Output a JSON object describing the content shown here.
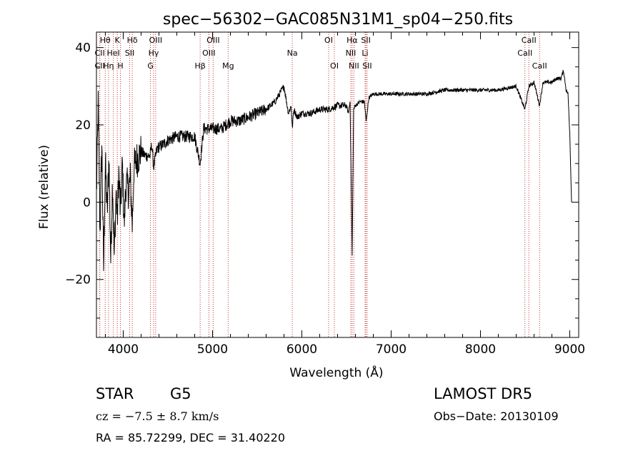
{
  "chart_data": {
    "type": "line",
    "title": "spec−56302−GAC085N31M1_sp04−250.fits",
    "xlabel": "Wavelength (Å)",
    "ylabel": "Flux (relative)",
    "xlim": [
      3700,
      9100
    ],
    "ylim": [
      -35,
      44
    ],
    "x_ticks": [
      4000,
      5000,
      6000,
      7000,
      8000,
      9000
    ],
    "x_tick_labels": [
      "4000",
      "5000",
      "6000",
      "7000",
      "8000",
      "9000"
    ],
    "y_ticks": [
      -20,
      0,
      20,
      40
    ],
    "y_tick_labels": [
      "−20",
      "0",
      "20",
      "40"
    ],
    "grid": false,
    "line_color": "#000000",
    "marker_color": "#c83232",
    "series": [
      {
        "x": [
          3700,
          3720,
          3740,
          3760,
          3780,
          3800,
          3820,
          3840,
          3860,
          3880,
          3900,
          3920,
          3933,
          3950,
          3968,
          3990,
          4010,
          4030,
          4060,
          4080,
          4101,
          4120,
          4150,
          4200,
          4250,
          4300,
          4320,
          4340,
          4380,
          4450,
          4500,
          4600,
          4700,
          4800,
          4861,
          4900,
          5000,
          5100,
          5200,
          5300,
          5400,
          5500,
          5600,
          5700,
          5800,
          5850,
          5880,
          5893,
          5910,
          5950,
          6000,
          6100,
          6200,
          6300,
          6400,
          6500,
          6520,
          6540,
          6563,
          6580,
          6600,
          6650,
          6700,
          6720,
          6750,
          6800,
          6900,
          7000,
          7200,
          7400,
          7600,
          7800,
          8000,
          8200,
          8400,
          8498,
          8542,
          8600,
          8662,
          8700,
          8800,
          8850,
          8900,
          8930,
          8960,
          8980,
          9000,
          9020
        ],
        "y": [
          2,
          25,
          -8,
          15,
          -17,
          10,
          -3,
          12,
          -15,
          6,
          -14,
          3,
          -5,
          8,
          -3,
          10,
          -6,
          5,
          3,
          6,
          -6,
          9,
          11,
          13,
          12,
          12,
          15,
          9,
          14,
          15,
          16,
          17,
          17,
          17,
          10,
          19,
          19,
          19,
          21,
          21,
          22,
          23,
          24,
          26,
          30,
          23,
          25,
          19,
          24,
          22,
          23,
          23,
          24,
          24,
          25,
          25,
          23,
          26,
          -14,
          24,
          25,
          26,
          26,
          21,
          27,
          28,
          28,
          28,
          28,
          28,
          29,
          29,
          29,
          29,
          30,
          24,
          30,
          31,
          25,
          31,
          31,
          32,
          32,
          34,
          29,
          28,
          18,
          0
        ]
      }
    ],
    "lines": [
      {
        "label": "CII",
        "x": 3737,
        "row": 2
      },
      {
        "label": "Hθ",
        "x": 3798,
        "row": 0
      },
      {
        "label": "CII",
        "x": 3737,
        "row": 1
      },
      {
        "label": "Hη",
        "x": 3835,
        "row": 2
      },
      {
        "label": "HeI",
        "x": 3889,
        "row": 1
      },
      {
        "label": "K",
        "x": 3933,
        "row": 0
      },
      {
        "label": "H",
        "x": 3968,
        "row": 2
      },
      {
        "label": "SII",
        "x": 4072,
        "row": 1
      },
      {
        "label": "Hδ",
        "x": 4101,
        "row": 0
      },
      {
        "label": "G",
        "x": 4305,
        "row": 2
      },
      {
        "label": "Hγ",
        "x": 4340,
        "row": 1
      },
      {
        "label": "OIII",
        "x": 4363,
        "row": 0
      },
      {
        "label": "Hβ",
        "x": 4861,
        "row": 2
      },
      {
        "label": "OIII",
        "x": 4959,
        "row": 1
      },
      {
        "label": "OIII",
        "x": 5007,
        "row": 0
      },
      {
        "label": "Mg",
        "x": 5175,
        "row": 2
      },
      {
        "label": "Na",
        "x": 5893,
        "row": 1
      },
      {
        "label": "OI",
        "x": 6300,
        "row": 0
      },
      {
        "label": "OI",
        "x": 6364,
        "row": 2
      },
      {
        "label": "NII",
        "x": 6548,
        "row": 1
      },
      {
        "label": "Hα",
        "x": 6563,
        "row": 0
      },
      {
        "label": "NII",
        "x": 6583,
        "row": 2
      },
      {
        "label": "Li",
        "x": 6708,
        "row": 1
      },
      {
        "label": "SII",
        "x": 6717,
        "row": 0
      },
      {
        "label": "SII",
        "x": 6731,
        "row": 2
      },
      {
        "label": "CaII",
        "x": 8498,
        "row": 1
      },
      {
        "label": "CaII",
        "x": 8542,
        "row": 0
      },
      {
        "label": "CaII",
        "x": 8662,
        "row": 2
      }
    ]
  },
  "info": {
    "object_class": "STAR",
    "subclass": "G5",
    "survey": "LAMOST DR5",
    "redshift_text": "cz = −7.5 ± 8.7 km/s",
    "obs_date": "Obs−Date: 20130109",
    "coords": "RA =  85.72299, DEC =  31.40220"
  }
}
